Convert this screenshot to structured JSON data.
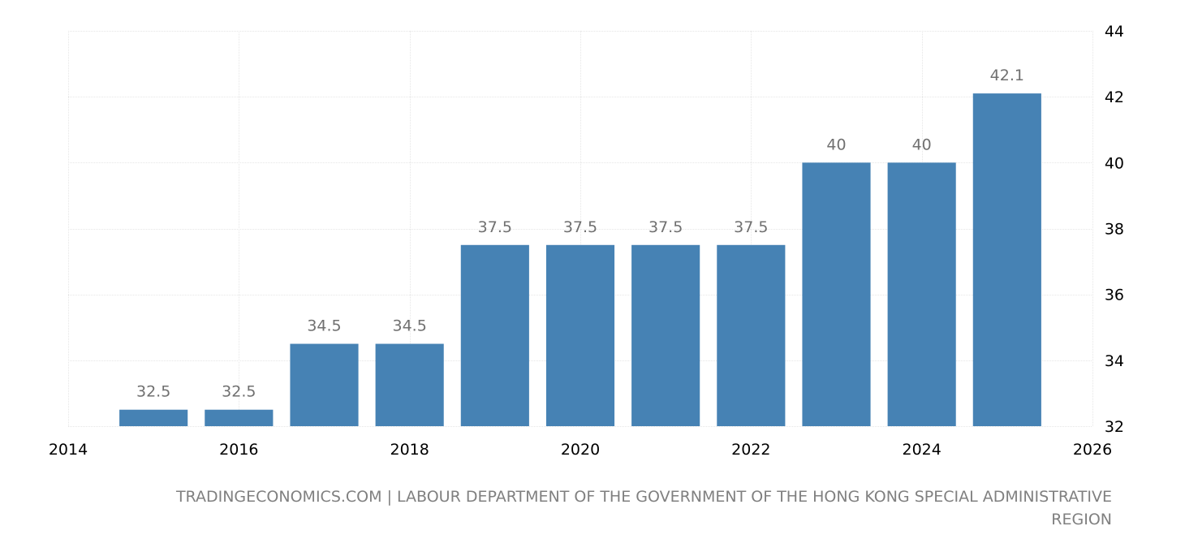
{
  "chart_data": {
    "type": "bar",
    "x": [
      2015,
      2016,
      2017,
      2018,
      2019,
      2020,
      2021,
      2022,
      2023,
      2024,
      2025
    ],
    "values": [
      32.5,
      32.5,
      34.5,
      34.5,
      37.5,
      37.5,
      37.5,
      37.5,
      40,
      40,
      42.1
    ],
    "value_labels": [
      "32.5",
      "32.5",
      "34.5",
      "34.5",
      "37.5",
      "37.5",
      "37.5",
      "37.5",
      "40",
      "40",
      "42.1"
    ],
    "xlim": [
      2014,
      2026
    ],
    "ylim": [
      32,
      44
    ],
    "x_ticks": [
      "2014",
      "2016",
      "2018",
      "2020",
      "2022",
      "2024",
      "2026"
    ],
    "y_ticks": [
      "32",
      "34",
      "36",
      "38",
      "40",
      "42",
      "44"
    ],
    "y_axis_side": "right",
    "grid": true,
    "bar_color": "#4682b4",
    "title": "",
    "xlabel": "",
    "ylabel": ""
  },
  "source_text": "TRADINGECONOMICS.COM | LABOUR DEPARTMENT OF THE GOVERNMENT OF THE HONG KONG SPECIAL ADMINISTRATIVE REGION"
}
